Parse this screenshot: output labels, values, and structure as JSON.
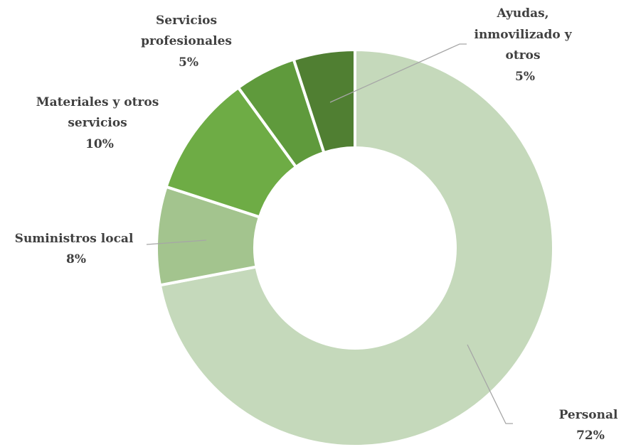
{
  "chart_data": {
    "type": "pie",
    "variant": "donut",
    "title": "",
    "legend": "none",
    "slices": [
      {
        "label": "Personal",
        "value": 72,
        "value_label": "72%",
        "color": "#c5d9bb"
      },
      {
        "label": "Suministros local",
        "value": 8,
        "value_label": "8%",
        "color": "#a3c48e"
      },
      {
        "label": "Materiales y otros servicios",
        "value": 10,
        "value_label": "10%",
        "color": "#6eac45"
      },
      {
        "label": "Servicios profesionales",
        "value": 5,
        "value_label": "5%",
        "color": "#5f9a3c"
      },
      {
        "label": "Ayudas, inmovilizado y otros",
        "value": 5,
        "value_label": "5%",
        "color": "#507f32"
      }
    ]
  }
}
